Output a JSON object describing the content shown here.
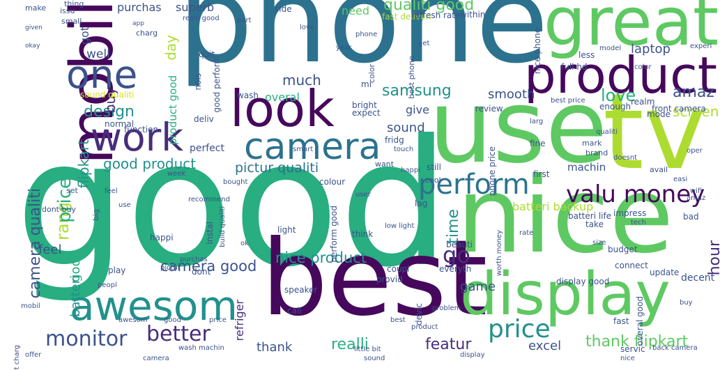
{
  "colors": {
    "dark_purple": "#46085c",
    "purple": "#472d7b",
    "indigo": "#3b528b",
    "blue": "#2c728e",
    "teal": "#21918c",
    "sea_green": "#28ae80",
    "green": "#5ec962",
    "yellow_green": "#addc30",
    "yellow": "#d8e219"
  },
  "words": [
    {
      "text": "good",
      "color": "sea_green"
    },
    {
      "text": "phone",
      "color": "blue"
    },
    {
      "text": "best",
      "color": "dark_purple"
    },
    {
      "text": "nice",
      "color": "green"
    },
    {
      "text": "use",
      "color": "green"
    },
    {
      "text": "tv",
      "color": "yellow_green"
    },
    {
      "text": "great",
      "color": "green"
    },
    {
      "text": "display",
      "color": "green"
    },
    {
      "text": "product",
      "color": "dark_purple"
    },
    {
      "text": "mobil",
      "color": "dark_purple"
    },
    {
      "text": "look",
      "color": "dark_purple"
    },
    {
      "text": "camera",
      "color": "blue"
    },
    {
      "text": "work",
      "color": "purple"
    },
    {
      "text": "awesom",
      "color": "teal"
    },
    {
      "text": "one",
      "color": "indigo"
    },
    {
      "text": "perform",
      "color": "blue"
    },
    {
      "text": "valu money",
      "color": "dark_purple"
    },
    {
      "text": "price",
      "color": "teal"
    },
    {
      "text": "better",
      "color": "purple"
    },
    {
      "text": "monitor",
      "color": "indigo"
    },
    {
      "text": "qualiti good",
      "color": "green"
    },
    {
      "text": "good product",
      "color": "teal"
    },
    {
      "text": "design",
      "color": "teal"
    },
    {
      "text": "go",
      "color": "purple"
    },
    {
      "text": "samsung",
      "color": "teal"
    },
    {
      "text": "pictur qualiti",
      "color": "blue"
    },
    {
      "text": "rang",
      "color": "yellow_green"
    },
    {
      "text": "price",
      "color": "sea_green"
    },
    {
      "text": "camera qualiti",
      "color": "indigo"
    },
    {
      "text": "camera good",
      "color": "indigo"
    },
    {
      "text": "nice product",
      "color": "teal"
    },
    {
      "text": "love",
      "color": "sea_green"
    },
    {
      "text": "amaz",
      "color": "indigo"
    },
    {
      "text": "screen",
      "color": "yellow_green"
    },
    {
      "text": "thank flipkart",
      "color": "green"
    },
    {
      "text": "featur",
      "color": "purple"
    },
    {
      "text": "realli",
      "color": "sea_green"
    },
    {
      "text": "much",
      "color": "indigo"
    },
    {
      "text": "time",
      "color": "teal"
    },
    {
      "text": "hour",
      "color": "purple"
    },
    {
      "text": "flipkart",
      "color": "teal"
    },
    {
      "text": "good",
      "color": "sea_green"
    },
    {
      "text": "batteri",
      "color": "teal"
    },
    {
      "text": "sound",
      "color": "indigo"
    },
    {
      "text": "smooth",
      "color": "indigo"
    },
    {
      "text": "buy",
      "color": "purple"
    },
    {
      "text": "day",
      "color": "yellow_green"
    },
    {
      "text": "laptop",
      "color": "indigo"
    },
    {
      "text": "excel",
      "color": "indigo"
    },
    {
      "text": "thank",
      "color": "indigo"
    },
    {
      "text": "refriger",
      "color": "purple"
    },
    {
      "text": "feel",
      "color": "indigo"
    },
    {
      "text": "game",
      "color": "indigo"
    },
    {
      "text": "give",
      "color": "indigo"
    },
    {
      "text": "well",
      "color": "indigo"
    },
    {
      "text": "need",
      "color": "green"
    },
    {
      "text": "purchas",
      "color": "indigo"
    },
    {
      "text": "superb",
      "color": "indigo"
    },
    {
      "text": "batteri backup",
      "color": "yellow_green"
    },
    {
      "text": "machin",
      "color": "indigo"
    },
    {
      "text": "overal",
      "color": "sea_green"
    },
    {
      "text": "perfect",
      "color": "indigo"
    },
    {
      "text": "got",
      "color": "indigo"
    },
    {
      "text": "product good",
      "color": "sea_green"
    },
    {
      "text": "update",
      "color": "indigo"
    },
    {
      "text": "decent",
      "color": "indigo"
    },
    {
      "text": "connect",
      "color": "indigo"
    },
    {
      "text": "budget",
      "color": "indigo"
    },
    {
      "text": "brand",
      "color": "indigo"
    },
    {
      "text": "avail",
      "color": "indigo"
    },
    {
      "text": "servic",
      "color": "indigo"
    },
    {
      "text": "display good",
      "color": "indigo"
    },
    {
      "text": "realm",
      "color": "indigo"
    },
    {
      "text": "mode",
      "color": "indigo"
    },
    {
      "text": "recommend",
      "color": "indigo"
    },
    {
      "text": "speaker",
      "color": "indigo"
    },
    {
      "text": "fast deliveri",
      "color": "yellow_green"
    },
    {
      "text": "nice phone",
      "color": "indigo"
    },
    {
      "text": "full hd",
      "color": "indigo"
    },
    {
      "text": "thing",
      "color": "indigo"
    },
    {
      "text": "fast",
      "color": "indigo"
    },
    {
      "text": "batteri life",
      "color": "indigo"
    },
    {
      "text": "impress",
      "color": "indigo"
    },
    {
      "text": "instal",
      "color": "indigo"
    },
    {
      "text": "call",
      "color": "indigo"
    },
    {
      "text": "think",
      "color": "indigo"
    },
    {
      "text": "light",
      "color": "indigo"
    },
    {
      "text": "happi",
      "color": "indigo"
    },
    {
      "text": "bought",
      "color": "indigo"
    },
    {
      "text": "colour",
      "color": "indigo"
    },
    {
      "text": "small",
      "color": "indigo"
    },
    {
      "text": "issu",
      "color": "indigo"
    },
    {
      "text": "make",
      "color": "indigo"
    },
    {
      "text": "charg",
      "color": "indigo"
    },
    {
      "text": "front camera",
      "color": "indigo"
    },
    {
      "text": "fridg",
      "color": "indigo"
    },
    {
      "text": "set",
      "color": "indigo"
    },
    {
      "text": "dont buy",
      "color": "indigo"
    },
    {
      "text": "expect",
      "color": "indigo"
    },
    {
      "text": "review",
      "color": "indigo"
    },
    {
      "text": "normal",
      "color": "indigo"
    },
    {
      "text": "function",
      "color": "indigo"
    },
    {
      "text": "deliv",
      "color": "indigo"
    },
    {
      "text": "play",
      "color": "indigo"
    },
    {
      "text": "want",
      "color": "indigo"
    },
    {
      "text": "still",
      "color": "indigo"
    },
    {
      "text": "first",
      "color": "indigo"
    },
    {
      "text": "enough",
      "color": "indigo"
    },
    {
      "text": "take",
      "color": "indigo"
    },
    {
      "text": "beauti",
      "color": "indigo"
    },
    {
      "text": "dont",
      "color": "indigo"
    },
    {
      "text": "coupl",
      "color": "indigo"
    },
    {
      "text": "provid",
      "color": "indigo"
    },
    {
      "text": "everyth",
      "color": "indigo"
    },
    {
      "text": "bad",
      "color": "indigo"
    },
    {
      "text": "fine",
      "color": "indigo"
    },
    {
      "text": "less",
      "color": "indigo"
    },
    {
      "text": "week",
      "color": "indigo"
    },
    {
      "text": "sound qualiti",
      "color": "yellow"
    },
    {
      "text": "good perform",
      "color": "indigo"
    },
    {
      "text": "bright",
      "color": "indigo"
    },
    {
      "text": "quit",
      "color": "indigo"
    },
    {
      "text": "nois",
      "color": "indigo"
    },
    {
      "text": "side",
      "color": "indigo"
    },
    {
      "text": "within",
      "color": "indigo"
    },
    {
      "text": "refresh rate",
      "color": "indigo"
    },
    {
      "text": "color",
      "color": "indigo"
    },
    {
      "text": "wash",
      "color": "indigo"
    },
    {
      "text": "mi",
      "color": "indigo"
    },
    {
      "text": "lag",
      "color": "indigo"
    },
    {
      "text": "cool",
      "color": "indigo"
    },
    {
      "text": "big",
      "color": "indigo"
    },
    {
      "text": "devic",
      "color": "indigo"
    },
    {
      "text": "wash machin",
      "color": "indigo"
    },
    {
      "text": "mark",
      "color": "indigo"
    },
    {
      "text": "best phone",
      "color": "indigo"
    },
    {
      "text": "perform good",
      "color": "indigo"
    },
    {
      "text": "build qualiti",
      "color": "indigo"
    },
    {
      "text": "low light",
      "color": "indigo"
    },
    {
      "text": "worth money",
      "color": "indigo"
    },
    {
      "text": "phone price",
      "color": "indigo"
    },
    {
      "text": "overal good",
      "color": "indigo"
    },
    {
      "text": "back camera",
      "color": "indigo"
    },
    {
      "text": "fast charg",
      "color": "indigo"
    },
    {
      "text": "offer",
      "color": "indigo"
    },
    {
      "text": "little bit",
      "color": "indigo"
    },
    {
      "text": "realli good",
      "color": "indigo"
    },
    {
      "text": "model",
      "color": "indigo"
    },
    {
      "text": "experi",
      "color": "indigo"
    },
    {
      "text": "best price",
      "color": "indigo"
    },
    {
      "text": "oper",
      "color": "indigo"
    },
    {
      "text": "easi",
      "color": "indigo"
    },
    {
      "text": "doesnt",
      "color": "indigo"
    },
    {
      "text": "year",
      "color": "indigo"
    },
    {
      "text": "pictur",
      "color": "indigo"
    },
    {
      "text": "peopl",
      "color": "indigo"
    },
    {
      "text": "ok",
      "color": "indigo"
    },
    {
      "text": "size",
      "color": "indigo"
    },
    {
      "text": "purchas",
      "color": "indigo"
    },
    {
      "text": "app",
      "color": "indigo"
    },
    {
      "text": "given",
      "color": "indigo"
    },
    {
      "text": "okay",
      "color": "indigo"
    },
    {
      "text": "larg",
      "color": "indigo"
    },
    {
      "text": "tech",
      "color": "indigo"
    },
    {
      "text": "problem",
      "color": "indigo"
    },
    {
      "text": "wifi",
      "color": "indigo"
    },
    {
      "text": "color",
      "color": "indigo"
    },
    {
      "text": "smart",
      "color": "indigo"
    },
    {
      "text": "touch",
      "color": "indigo"
    },
    {
      "text": "user",
      "color": "indigo"
    },
    {
      "text": "part",
      "color": "indigo"
    },
    {
      "text": "love",
      "color": "indigo"
    },
    {
      "text": "phone",
      "color": "indigo"
    },
    {
      "text": "get",
      "color": "indigo"
    },
    {
      "text": "qualiti",
      "color": "indigo"
    },
    {
      "text": "amaz",
      "color": "indigo"
    },
    {
      "text": "rate",
      "color": "indigo"
    },
    {
      "text": "good",
      "color": "indigo"
    },
    {
      "text": "sound",
      "color": "indigo"
    },
    {
      "text": "nice",
      "color": "indigo"
    },
    {
      "text": "best",
      "color": "indigo"
    },
    {
      "text": "product",
      "color": "indigo"
    },
    {
      "text": "buy",
      "color": "indigo"
    },
    {
      "text": "awesom",
      "color": "indigo"
    },
    {
      "text": "price",
      "color": "indigo"
    },
    {
      "text": "display",
      "color": "indigo"
    },
    {
      "text": "camera",
      "color": "indigo"
    },
    {
      "text": "happi",
      "color": "indigo"
    },
    {
      "text": "feel",
      "color": "indigo"
    },
    {
      "text": "use",
      "color": "indigo"
    },
    {
      "text": "mobil",
      "color": "indigo"
    }
  ]
}
